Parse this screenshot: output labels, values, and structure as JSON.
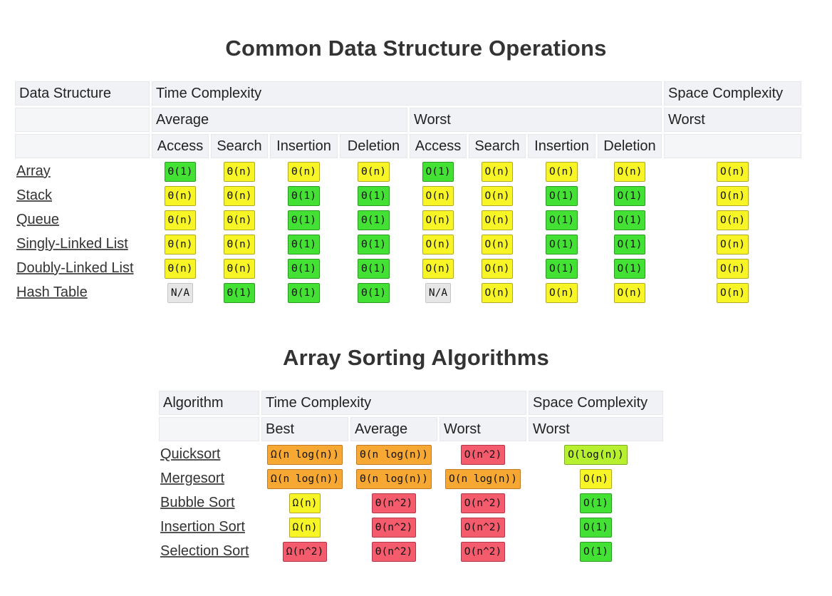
{
  "titles": {
    "ops": "Common Data Structure Operations",
    "sort": "Array Sorting Algorithms"
  },
  "colors": {
    "green": "#44e135",
    "yellow": "#f7f526",
    "orange": "#f7a833",
    "red": "#f45b6d",
    "lime": "#b7f02e",
    "grey": "#e6e6e6"
  },
  "ops_table": {
    "h_data_structure": "Data Structure",
    "h_time_complexity": "Time Complexity",
    "h_space_complexity": "Space Complexity",
    "h_average": "Average",
    "h_worst": "Worst",
    "h_space_worst": "Worst",
    "columns": [
      "Access",
      "Search",
      "Insertion",
      "Deletion",
      "Access",
      "Search",
      "Insertion",
      "Deletion"
    ],
    "rows": [
      {
        "name": "Array",
        "cells": [
          {
            "v": "Θ(1)",
            "c": "green"
          },
          {
            "v": "Θ(n)",
            "c": "yellow"
          },
          {
            "v": "Θ(n)",
            "c": "yellow"
          },
          {
            "v": "Θ(n)",
            "c": "yellow"
          },
          {
            "v": "O(1)",
            "c": "green"
          },
          {
            "v": "O(n)",
            "c": "yellow"
          },
          {
            "v": "O(n)",
            "c": "yellow"
          },
          {
            "v": "O(n)",
            "c": "yellow"
          },
          {
            "v": "O(n)",
            "c": "yellow"
          }
        ]
      },
      {
        "name": "Stack",
        "cells": [
          {
            "v": "Θ(n)",
            "c": "yellow"
          },
          {
            "v": "Θ(n)",
            "c": "yellow"
          },
          {
            "v": "Θ(1)",
            "c": "green"
          },
          {
            "v": "Θ(1)",
            "c": "green"
          },
          {
            "v": "O(n)",
            "c": "yellow"
          },
          {
            "v": "O(n)",
            "c": "yellow"
          },
          {
            "v": "O(1)",
            "c": "green"
          },
          {
            "v": "O(1)",
            "c": "green"
          },
          {
            "v": "O(n)",
            "c": "yellow"
          }
        ]
      },
      {
        "name": "Queue",
        "cells": [
          {
            "v": "Θ(n)",
            "c": "yellow"
          },
          {
            "v": "Θ(n)",
            "c": "yellow"
          },
          {
            "v": "Θ(1)",
            "c": "green"
          },
          {
            "v": "Θ(1)",
            "c": "green"
          },
          {
            "v": "O(n)",
            "c": "yellow"
          },
          {
            "v": "O(n)",
            "c": "yellow"
          },
          {
            "v": "O(1)",
            "c": "green"
          },
          {
            "v": "O(1)",
            "c": "green"
          },
          {
            "v": "O(n)",
            "c": "yellow"
          }
        ]
      },
      {
        "name": "Singly-Linked List",
        "cells": [
          {
            "v": "Θ(n)",
            "c": "yellow"
          },
          {
            "v": "Θ(n)",
            "c": "yellow"
          },
          {
            "v": "Θ(1)",
            "c": "green"
          },
          {
            "v": "Θ(1)",
            "c": "green"
          },
          {
            "v": "O(n)",
            "c": "yellow"
          },
          {
            "v": "O(n)",
            "c": "yellow"
          },
          {
            "v": "O(1)",
            "c": "green"
          },
          {
            "v": "O(1)",
            "c": "green"
          },
          {
            "v": "O(n)",
            "c": "yellow"
          }
        ]
      },
      {
        "name": "Doubly-Linked List",
        "cells": [
          {
            "v": "Θ(n)",
            "c": "yellow"
          },
          {
            "v": "Θ(n)",
            "c": "yellow"
          },
          {
            "v": "Θ(1)",
            "c": "green"
          },
          {
            "v": "Θ(1)",
            "c": "green"
          },
          {
            "v": "O(n)",
            "c": "yellow"
          },
          {
            "v": "O(n)",
            "c": "yellow"
          },
          {
            "v": "O(1)",
            "c": "green"
          },
          {
            "v": "O(1)",
            "c": "green"
          },
          {
            "v": "O(n)",
            "c": "yellow"
          }
        ]
      },
      {
        "name": "Hash Table",
        "cells": [
          {
            "v": "N/A",
            "c": "grey"
          },
          {
            "v": "Θ(1)",
            "c": "green"
          },
          {
            "v": "Θ(1)",
            "c": "green"
          },
          {
            "v": "Θ(1)",
            "c": "green"
          },
          {
            "v": "N/A",
            "c": "grey"
          },
          {
            "v": "O(n)",
            "c": "yellow"
          },
          {
            "v": "O(n)",
            "c": "yellow"
          },
          {
            "v": "O(n)",
            "c": "yellow"
          },
          {
            "v": "O(n)",
            "c": "yellow"
          }
        ]
      }
    ]
  },
  "sort_table": {
    "h_algorithm": "Algorithm",
    "h_time_complexity": "Time Complexity",
    "h_space_complexity": "Space Complexity",
    "columns": [
      "Best",
      "Average",
      "Worst"
    ],
    "h_space_worst": "Worst",
    "rows": [
      {
        "name": "Quicksort",
        "cells": [
          {
            "v": "Ω(n log(n))",
            "c": "orange"
          },
          {
            "v": "Θ(n log(n))",
            "c": "orange"
          },
          {
            "v": "O(n^2)",
            "c": "red"
          },
          {
            "v": "O(log(n))",
            "c": "lime"
          }
        ]
      },
      {
        "name": "Mergesort",
        "cells": [
          {
            "v": "Ω(n log(n))",
            "c": "orange"
          },
          {
            "v": "Θ(n log(n))",
            "c": "orange"
          },
          {
            "v": "O(n log(n))",
            "c": "orange"
          },
          {
            "v": "O(n)",
            "c": "yellow"
          }
        ]
      },
      {
        "name": "Bubble Sort",
        "cells": [
          {
            "v": "Ω(n)",
            "c": "yellow"
          },
          {
            "v": "Θ(n^2)",
            "c": "red"
          },
          {
            "v": "O(n^2)",
            "c": "red"
          },
          {
            "v": "O(1)",
            "c": "green"
          }
        ]
      },
      {
        "name": "Insertion Sort",
        "cells": [
          {
            "v": "Ω(n)",
            "c": "yellow"
          },
          {
            "v": "Θ(n^2)",
            "c": "red"
          },
          {
            "v": "O(n^2)",
            "c": "red"
          },
          {
            "v": "O(1)",
            "c": "green"
          }
        ]
      },
      {
        "name": "Selection Sort",
        "cells": [
          {
            "v": "Ω(n^2)",
            "c": "red"
          },
          {
            "v": "Θ(n^2)",
            "c": "red"
          },
          {
            "v": "O(n^2)",
            "c": "red"
          },
          {
            "v": "O(1)",
            "c": "green"
          }
        ]
      }
    ]
  }
}
